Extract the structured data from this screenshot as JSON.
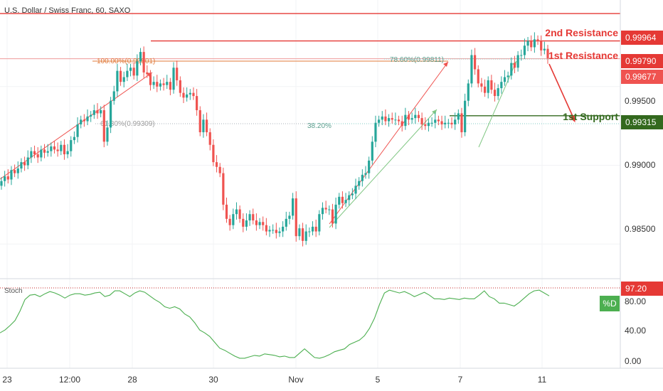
{
  "header": {
    "title": "U.S. Dollar / Swiss Franc, 60, SAXO"
  },
  "colors": {
    "up": "#26a69a",
    "down": "#ef5350",
    "resistance": "#e53935",
    "support": "#33691e",
    "fib": "#e07a3a",
    "stoch": "#4caf50",
    "axis_text": "#333333"
  },
  "price_axis": {
    "labels": [
      "0.99500",
      "0.99000",
      "0.98500"
    ]
  },
  "levels": {
    "resistance2": {
      "label": "2nd Resistance",
      "value": "0.99964"
    },
    "resistance1": {
      "label": "1st Resistance",
      "value": "0.99790"
    },
    "support1": {
      "label": "1st Support",
      "value": "0.99315"
    },
    "last_price": {
      "value": "0.99677"
    }
  },
  "fib_labels": {
    "a": "100.00%(0.99801)",
    "b": "61.80%(0.99309)",
    "c": "78.60%(0.99811)",
    "d": "38.20%"
  },
  "time_axis": {
    "labels": [
      "23",
      "12:00",
      "28",
      "30",
      "Nov",
      "5",
      "7",
      "11"
    ]
  },
  "stoch": {
    "title": "Stoch",
    "value_label": "97.20",
    "legend": "%D",
    "axis": [
      "80.00",
      "40.00",
      "0.00"
    ]
  },
  "chart_data": {
    "type": "line",
    "title": "U.S. Dollar / Swiss Franc, 60, SAXO",
    "yrange": [
      0.9828,
      1.0005
    ],
    "series": [
      {
        "name": "Close",
        "values": [
          0.989,
          0.9893,
          0.9891,
          0.9897,
          0.9895,
          0.9898,
          0.9902,
          0.99,
          0.9905,
          0.9909,
          0.9907,
          0.9905,
          0.991,
          0.9908,
          0.9909,
          0.9912,
          0.991,
          0.9909,
          0.9913,
          0.9907,
          0.9909,
          0.9916,
          0.9918,
          0.9926,
          0.9929,
          0.9928,
          0.9931,
          0.9932,
          0.9935,
          0.9933,
          0.9935,
          0.9915,
          0.9924,
          0.9941,
          0.9947,
          0.996,
          0.9953,
          0.9956,
          0.996,
          0.9962,
          0.9957,
          0.9966,
          0.9972,
          0.9959,
          0.9958,
          0.9951,
          0.9953,
          0.995,
          0.9952,
          0.9951,
          0.9953,
          0.9948,
          0.9962,
          0.9954,
          0.9946,
          0.9943,
          0.9945,
          0.9946,
          0.9944,
          0.9935,
          0.9921,
          0.9929,
          0.9921,
          0.9913,
          0.9902,
          0.9899,
          0.9895,
          0.9875,
          0.9866,
          0.9862,
          0.9869,
          0.9872,
          0.9866,
          0.9861,
          0.9865,
          0.9869,
          0.9865,
          0.9862,
          0.9864,
          0.9862,
          0.9858,
          0.9859,
          0.9859,
          0.9857,
          0.9858,
          0.9861,
          0.9866,
          0.9868,
          0.9879,
          0.9855,
          0.986,
          0.9852,
          0.9858,
          0.9858,
          0.9861,
          0.9858,
          0.9869,
          0.9873,
          0.9872,
          0.9872,
          0.9863,
          0.9875,
          0.988,
          0.9876,
          0.9878,
          0.9881,
          0.9882,
          0.9887,
          0.989,
          0.9894,
          0.9895,
          0.9903,
          0.9915,
          0.9927,
          0.9929,
          0.9931,
          0.9928,
          0.993,
          0.9929,
          0.9929,
          0.9928,
          0.9925,
          0.9932,
          0.9929,
          0.993,
          0.9932,
          0.993,
          0.9926,
          0.9925,
          0.9927,
          0.9927,
          0.9929,
          0.9928,
          0.9926,
          0.9927,
          0.9927,
          0.9926,
          0.9929,
          0.9933,
          0.9921,
          0.9941,
          0.9952,
          0.997,
          0.9961,
          0.9952,
          0.995,
          0.9946,
          0.9954,
          0.9948,
          0.9944,
          0.9949,
          0.9953,
          0.9956,
          0.9957,
          0.9965,
          0.9962,
          0.997,
          0.997,
          0.9976,
          0.9979,
          0.9975,
          0.998,
          0.9979,
          0.9973,
          0.9974,
          0.9968
        ]
      },
      {
        "name": "%D",
        "values": [
          38,
          42,
          48,
          55,
          68,
          84,
          90,
          91,
          88,
          92,
          95,
          93,
          90,
          86,
          90,
          92,
          92,
          90,
          91,
          93,
          94,
          88,
          90,
          96,
          96,
          92,
          88,
          93,
          96,
          94,
          89,
          84,
          80,
          74,
          72,
          74,
          71,
          64,
          60,
          52,
          42,
          38,
          33,
          25,
          17,
          14,
          10,
          6,
          3,
          3,
          5,
          7,
          6,
          9,
          8,
          7,
          5,
          6,
          4,
          4,
          10,
          16,
          10,
          4,
          3,
          5,
          8,
          12,
          14,
          16,
          22,
          25,
          28,
          34,
          44,
          58,
          77,
          93,
          97,
          95,
          93,
          95,
          92,
          88,
          91,
          94,
          90,
          85,
          85,
          84,
          86,
          85,
          84,
          86,
          85,
          85,
          90,
          96,
          88,
          85,
          79,
          79,
          77,
          75,
          80,
          86,
          92,
          96,
          97,
          93,
          89
        ]
      }
    ],
    "stoch_range": [
      0,
      100
    ]
  }
}
